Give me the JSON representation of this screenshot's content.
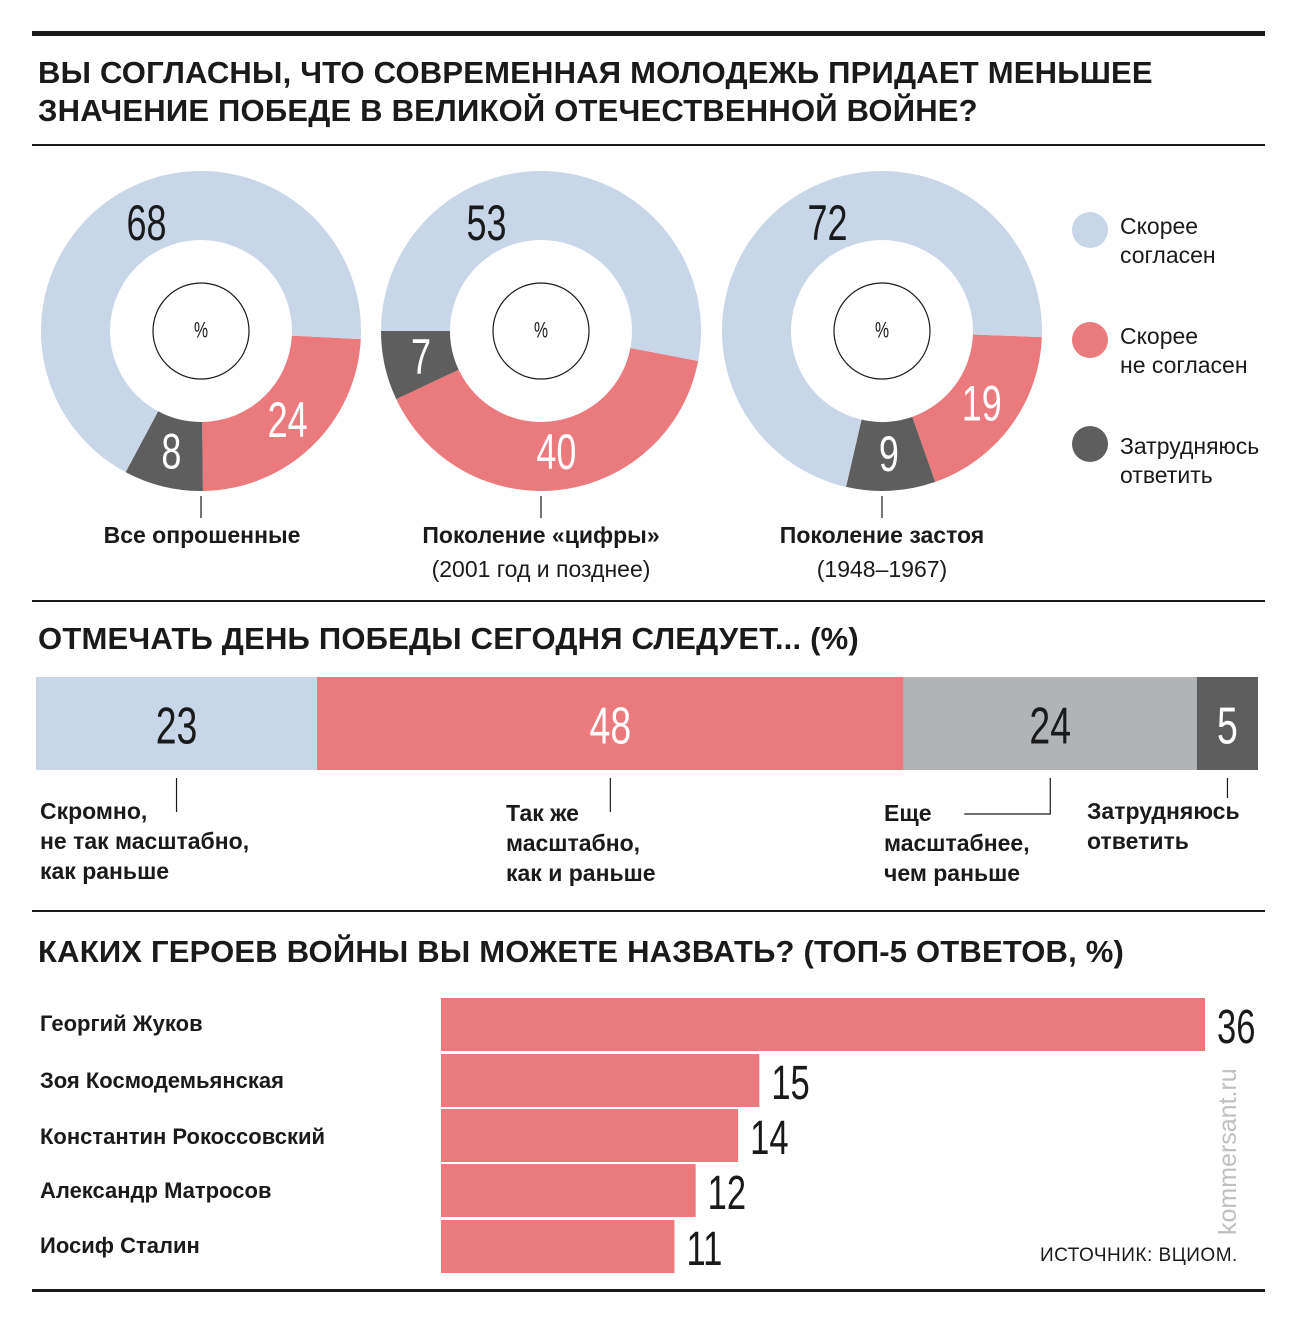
{
  "section1": {
    "title_line1": "ВЫ СОГЛАСНЫ, ЧТО СОВРЕМЕННАЯ МОЛОДЕЖЬ ПРИДАЕТ МЕНЬШЕЕ",
    "title_line2": "ЗНАЧЕНИЕ ПОБЕДЕ В ВЕЛИКОЙ ОТЕЧЕСТВЕННОЙ ВОЙНЕ?",
    "center_label": "%",
    "legend": [
      {
        "line1": "Скорее",
        "line2": "согласен",
        "color": "#c9d6e7"
      },
      {
        "line1": "Скорее",
        "line2": "не согласен",
        "color": "#eb7a7d"
      },
      {
        "line1": "Затрудняюсь",
        "line2": "ответить",
        "color": "#5e5e5e"
      }
    ]
  },
  "section2": {
    "title": "ОТМЕЧАТЬ ДЕНЬ ПОБЕДЫ СЕГОДНЯ СЛЕДУЕТ... (%)",
    "labels": [
      [
        "Скромно,",
        "не так масштабно,",
        "как раньше"
      ],
      [
        "Так же",
        "масштабно,",
        "как и раньше"
      ],
      [
        "Еще",
        "масштабнее,",
        "чем раньше"
      ],
      [
        "Затрудняюсь",
        "ответить"
      ]
    ]
  },
  "section3": {
    "title": "КАКИХ ГЕРОЕВ ВОЙНЫ ВЫ МОЖЕТЕ НАЗВАТЬ? (ТОП-5 ОТВЕТОВ, %)"
  },
  "source": "ИСТОЧНИК: ВЦИОМ.",
  "watermark": "kommersant.ru",
  "chart_data": [
    {
      "type": "pie",
      "subtype": "donut",
      "caption": [
        "Все опрошенные",
        ""
      ],
      "categories": [
        "Скорее согласен",
        "Скорее не согласен",
        "Затрудняюсь ответить"
      ],
      "values": [
        68,
        24,
        8
      ],
      "colors": [
        "#c9d6e7",
        "#eb7a7d",
        "#5e5e5e"
      ]
    },
    {
      "type": "pie",
      "subtype": "donut",
      "caption": [
        "Поколение «цифры»",
        "(2001 год и позднее)"
      ],
      "categories": [
        "Скорее согласен",
        "Скорее не согласен",
        "Затрудняюсь ответить"
      ],
      "values": [
        53,
        40,
        7
      ],
      "colors": [
        "#c9d6e7",
        "#eb7a7d",
        "#5e5e5e"
      ]
    },
    {
      "type": "pie",
      "subtype": "donut",
      "caption": [
        "Поколение застоя",
        "(1948–1967)"
      ],
      "categories": [
        "Скорее согласен",
        "Скорее не согласен",
        "Затрудняюсь ответить"
      ],
      "values": [
        72,
        19,
        9
      ],
      "colors": [
        "#c9d6e7",
        "#eb7a7d",
        "#5e5e5e"
      ]
    },
    {
      "type": "bar",
      "orientation": "horizontal-stacked",
      "categories": [
        "Скромно, не так масштабно, как раньше",
        "Так же масштабно, как и раньше",
        "Еще масштабнее, чем раньше",
        "Затрудняюсь ответить"
      ],
      "values": [
        23,
        48,
        24,
        5
      ],
      "colors": [
        "#c9d6e7",
        "#eb7a7d",
        "#b1b4b7",
        "#5e5e5e"
      ],
      "label_colors": [
        "#1a1a1a",
        "#ffffff",
        "#1a1a1a",
        "#ffffff"
      ]
    },
    {
      "type": "bar",
      "orientation": "horizontal",
      "categories": [
        "Георгий Жуков",
        "Зоя Космодемьянская",
        "Константин Рокоссовский",
        "Александр Матросов",
        "Иосиф Сталин"
      ],
      "values": [
        36,
        15,
        14,
        12,
        11
      ],
      "color": "#eb7a7d"
    }
  ]
}
